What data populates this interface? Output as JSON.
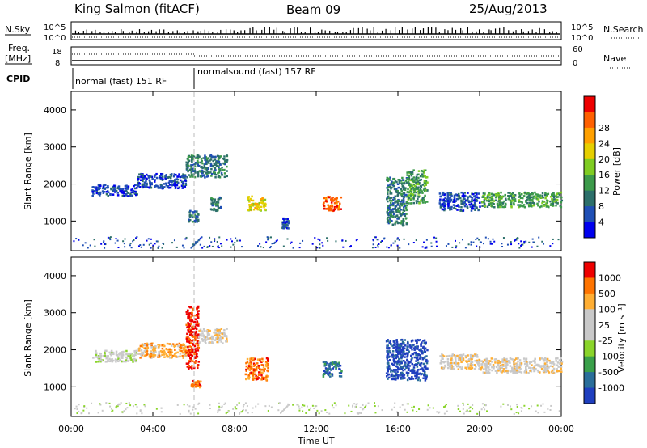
{
  "header": {
    "station": "King Salmon (fitACF)",
    "beam": "Beam 09",
    "date": "25/Aug/2013"
  },
  "strip_labels": {
    "nsky": "N.Sky",
    "nsearch": "N.Search",
    "freq_line1": "Freq.",
    "freq_line2": "[MHz]",
    "nave": "Nave",
    "cpid": "CPID",
    "noise_ticks": [
      "10^5",
      "10^0"
    ],
    "freq_ticks": [
      "18",
      "8"
    ],
    "nave_ticks": [
      "60",
      "0"
    ]
  },
  "cpid_modes": [
    {
      "label": "normal (fast) 151 RF",
      "start_hour": 0,
      "end_hour": 6.0
    },
    {
      "label": "normalsound (fast) 157 RF",
      "start_hour": 6.0,
      "end_hour": 24
    }
  ],
  "xaxis": {
    "label": "Time UT",
    "ticks": [
      "00:00",
      "04:00",
      "08:00",
      "12:00",
      "16:00",
      "20:00",
      "00:00"
    ],
    "range_hours": [
      0,
      24
    ]
  },
  "chart_data": [
    {
      "type": "heatmap",
      "panel": "power",
      "ylabel": "Slant Range [km]",
      "yticks": [
        "1000",
        "2000",
        "3000",
        "4000"
      ],
      "ylim": [
        200,
        4500
      ],
      "colorbar": {
        "label": "Power [dB]",
        "ticks": [
          "4",
          "8",
          "12",
          "16",
          "20",
          "24",
          "28"
        ],
        "colors": [
          "#0000ee",
          "#1f4fb5",
          "#2c6f6a",
          "#3c9a4a",
          "#7fcc22",
          "#e6cf00",
          "#ffa000",
          "#ff6000",
          "#ee0000"
        ]
      },
      "echo_regions": [
        {
          "t0": 1.0,
          "t1": 3.2,
          "r0": 1700,
          "r1": 2000,
          "level": 1
        },
        {
          "t0": 3.2,
          "t1": 5.6,
          "r0": 1900,
          "r1": 2300,
          "level": 1
        },
        {
          "t0": 5.6,
          "t1": 7.6,
          "r0": 2200,
          "r1": 2800,
          "level": 2
        },
        {
          "t0": 5.7,
          "t1": 6.2,
          "r0": 1000,
          "r1": 1300,
          "level": 2
        },
        {
          "t0": 6.8,
          "t1": 7.3,
          "r0": 1300,
          "r1": 1700,
          "level": 2
        },
        {
          "t0": 8.6,
          "t1": 9.5,
          "r0": 1300,
          "r1": 1700,
          "level": 5
        },
        {
          "t0": 10.3,
          "t1": 10.6,
          "r0": 800,
          "r1": 1100,
          "level": 1
        },
        {
          "t0": 12.3,
          "t1": 13.2,
          "r0": 1300,
          "r1": 1700,
          "level": 7
        },
        {
          "t0": 15.4,
          "t1": 16.4,
          "r0": 900,
          "r1": 2200,
          "level": 2
        },
        {
          "t0": 16.4,
          "t1": 17.4,
          "r0": 1500,
          "r1": 2400,
          "level": 3
        },
        {
          "t0": 18.0,
          "t1": 20.0,
          "r0": 1300,
          "r1": 1800,
          "level": 1
        },
        {
          "t0": 20.0,
          "t1": 24.0,
          "r0": 1400,
          "r1": 1800,
          "level": 3
        }
      ]
    },
    {
      "type": "heatmap",
      "panel": "velocity",
      "ylabel": "Slant Range [km]",
      "yticks": [
        "1000",
        "2000",
        "3000",
        "4000"
      ],
      "ylim": [
        200,
        4500
      ],
      "colorbar": {
        "label": "Velocity [m s⁻¹]",
        "ticks": [
          "1000",
          "500",
          "100",
          "25",
          "-25",
          "-100",
          "-500",
          "-1000"
        ],
        "colors": [
          "#1f3fbf",
          "#2a6e9a",
          "#3aa04a",
          "#8ad42a",
          "#c9c9c9",
          "#c9c9c9",
          "#ffae33",
          "#ff7400",
          "#ee0000"
        ]
      },
      "echo_regions": [
        {
          "t0": 1.0,
          "t1": 3.2,
          "r0": 1700,
          "r1": 2000,
          "level": 4
        },
        {
          "t0": 3.2,
          "t1": 5.6,
          "r0": 1800,
          "r1": 2200,
          "level": 6
        },
        {
          "t0": 5.6,
          "t1": 6.2,
          "r0": 1500,
          "r1": 3200,
          "level": 8
        },
        {
          "t0": 6.2,
          "t1": 7.6,
          "r0": 2200,
          "r1": 2600,
          "level": 5
        },
        {
          "t0": 5.8,
          "t1": 6.3,
          "r0": 1000,
          "r1": 1200,
          "level": 7
        },
        {
          "t0": 8.5,
          "t1": 9.6,
          "r0": 1200,
          "r1": 1800,
          "level": 7
        },
        {
          "t0": 12.3,
          "t1": 13.2,
          "r0": 1300,
          "r1": 1700,
          "level": 1
        },
        {
          "t0": 15.4,
          "t1": 17.4,
          "r0": 1200,
          "r1": 2300,
          "level": 0
        },
        {
          "t0": 18.0,
          "t1": 20.0,
          "r0": 1500,
          "r1": 1900,
          "level": 5
        },
        {
          "t0": 20.0,
          "t1": 24.0,
          "r0": 1400,
          "r1": 1800,
          "level": 5
        }
      ]
    }
  ]
}
